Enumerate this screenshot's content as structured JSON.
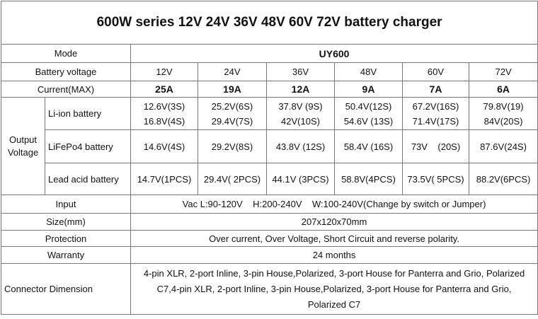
{
  "title": "600W series 12V 24V 36V 48V 60V 72V battery charger",
  "table": {
    "mode_label": "Mode",
    "mode": "UY600",
    "voltage_label": "Battery voltage",
    "voltages": [
      "12V",
      "24V",
      "36V",
      "48V",
      "60V",
      "72V"
    ],
    "current_label": "Current(MAX)",
    "currents": [
      "25A",
      "19A",
      "12A",
      "9A",
      "7A",
      "6A"
    ],
    "output_label": "Output Voltage",
    "outputs": [
      {
        "name": "Li-ion battery",
        "cells": [
          [
            "12.6V(3S)",
            "16.8V(4S)"
          ],
          [
            "25.2V(6S)",
            "29.4V(7S)"
          ],
          [
            "37.8V (9S)",
            "42V(10S)"
          ],
          [
            "50.4V(12S)",
            "54.6V (13S)"
          ],
          [
            "67.2V(16S)",
            "71.4V(17S)"
          ],
          [
            "79.8V(19)",
            "84V(20S)"
          ]
        ]
      },
      {
        "name": "LiFePo4 battery",
        "cells": [
          [
            "14.6V(4S)"
          ],
          [
            "29.2V(8S)"
          ],
          [
            "43.8V (12S)"
          ],
          [
            "58.4V (16S)"
          ],
          [
            "73V    (20S)"
          ],
          [
            "87.6V(24S)"
          ]
        ]
      },
      {
        "name": "Lead acid battery",
        "cells": [
          [
            "14.7V(1PCS)"
          ],
          [
            "29.4V( 2PCS)"
          ],
          [
            "44.1V (3PCS)"
          ],
          [
            "58.8V(4PCS)"
          ],
          [
            "73.5V( 5PCS)"
          ],
          [
            "88.2V(6PCS)"
          ]
        ]
      }
    ],
    "input_label": "Input",
    "input": "Vac L:90-120V    H:200-240V    W:100-240V(Change by switch or Jumper)",
    "size_label": "Size(mm)",
    "size": "207x120x70mm",
    "protection_label": "Protection",
    "protection": "Over current, Over Voltage, Short Circuit and reverse polarity.",
    "warranty_label": "Warranty",
    "warranty": "24 months",
    "connector_label": "Connector Dimension",
    "connector": "4-pin XLR, 2-port Inline, 3-pin House,Polarized, 3-port House for Panterra and Grio, Polarized C7,4-pin XLR, 2-port Inline, 3-pin House,Polarized, 3-port House for Panterra and Grio, Polarized C7"
  }
}
